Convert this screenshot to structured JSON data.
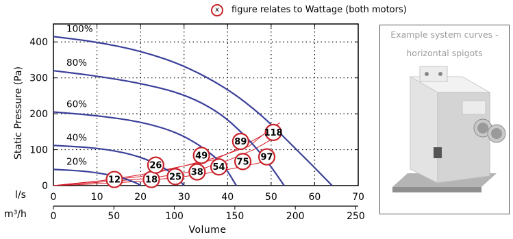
{
  "legend": {
    "marker_text": "x",
    "text": "figure relates to Wattage (both motors)"
  },
  "photo": {
    "caption_line1": "Example system curves -",
    "caption_line2": "horizontal spigots"
  },
  "units": {
    "ls": "l/s",
    "m3h": "m³/h"
  },
  "axis": {
    "ylabel": "Static Pressure (Pa)",
    "xlabel": "Volume"
  },
  "colors": {
    "fan_curve": "#3a3f9a",
    "system_curve": "#d81e2b",
    "marker": "#c7222a",
    "grid": "#000000"
  },
  "chart_data": {
    "type": "line",
    "x_units": "l/s",
    "xlim": [
      0,
      70
    ],
    "ylim": [
      0,
      450
    ],
    "x_ticks_ls": [
      0,
      10,
      20,
      30,
      40,
      50,
      60,
      70
    ],
    "x_ticks_m3h": [
      0,
      50,
      100,
      150,
      200,
      250
    ],
    "y_ticks": [
      0,
      100,
      200,
      300,
      400
    ],
    "grid": true,
    "series": [
      {
        "name": "100%",
        "points": [
          [
            0,
            415
          ],
          [
            10,
            400
          ],
          [
            20,
            375
          ],
          [
            30,
            335
          ],
          [
            40,
            270
          ],
          [
            48,
            195
          ],
          [
            55,
            110
          ],
          [
            60,
            50
          ],
          [
            64,
            0
          ]
        ]
      },
      {
        "name": "80%",
        "points": [
          [
            0,
            320
          ],
          [
            10,
            305
          ],
          [
            20,
            285
          ],
          [
            30,
            255
          ],
          [
            38,
            205
          ],
          [
            44,
            140
          ],
          [
            49,
            70
          ],
          [
            53,
            0
          ]
        ]
      },
      {
        "name": "60%",
        "points": [
          [
            0,
            205
          ],
          [
            10,
            195
          ],
          [
            20,
            178
          ],
          [
            28,
            150
          ],
          [
            34,
            110
          ],
          [
            39,
            60
          ],
          [
            42,
            0
          ]
        ]
      },
      {
        "name": "40%",
        "points": [
          [
            0,
            112
          ],
          [
            10,
            105
          ],
          [
            18,
            88
          ],
          [
            24,
            60
          ],
          [
            28,
            28
          ],
          [
            30,
            0
          ]
        ]
      },
      {
        "name": "20%",
        "points": [
          [
            0,
            45
          ],
          [
            8,
            40
          ],
          [
            15,
            25
          ],
          [
            19,
            8
          ],
          [
            20,
            0
          ]
        ]
      }
    ],
    "system_curves": [
      {
        "points": [
          [
            0,
            0
          ],
          [
            10,
            12
          ],
          [
            20,
            30
          ],
          [
            30,
            55
          ],
          [
            37,
            72
          ],
          [
            42,
            100
          ],
          [
            48,
            140
          ],
          [
            52,
            175
          ]
        ]
      },
      {
        "points": [
          [
            0,
            0
          ],
          [
            20,
            25
          ],
          [
            30,
            55
          ],
          [
            38,
            80
          ],
          [
            45,
            110
          ],
          [
            48,
            140
          ],
          [
            52,
            175
          ]
        ]
      },
      {
        "points": [
          [
            0,
            0
          ],
          [
            10,
            5
          ],
          [
            20,
            12
          ],
          [
            30,
            25
          ],
          [
            35,
            34
          ],
          [
            41,
            47
          ],
          [
            48,
            65
          ]
        ]
      },
      {
        "points": [
          [
            0,
            0
          ],
          [
            22,
            20
          ],
          [
            30,
            35
          ],
          [
            35,
            50
          ],
          [
            40,
            70
          ],
          [
            46,
            100
          ],
          [
            50,
            128
          ]
        ]
      }
    ],
    "wattage_markers": [
      {
        "label": "12",
        "x": 14,
        "y": 17
      },
      {
        "label": "18",
        "x": 22.5,
        "y": 17
      },
      {
        "label": "25",
        "x": 28,
        "y": 25
      },
      {
        "label": "26",
        "x": 23.5,
        "y": 57
      },
      {
        "label": "38",
        "x": 33,
        "y": 38
      },
      {
        "label": "49",
        "x": 34,
        "y": 84
      },
      {
        "label": "54",
        "x": 38,
        "y": 52
      },
      {
        "label": "75",
        "x": 43.5,
        "y": 67
      },
      {
        "label": "89",
        "x": 43,
        "y": 123
      },
      {
        "label": "97",
        "x": 49,
        "y": 80
      },
      {
        "label": "118",
        "x": 50.5,
        "y": 148
      }
    ]
  }
}
